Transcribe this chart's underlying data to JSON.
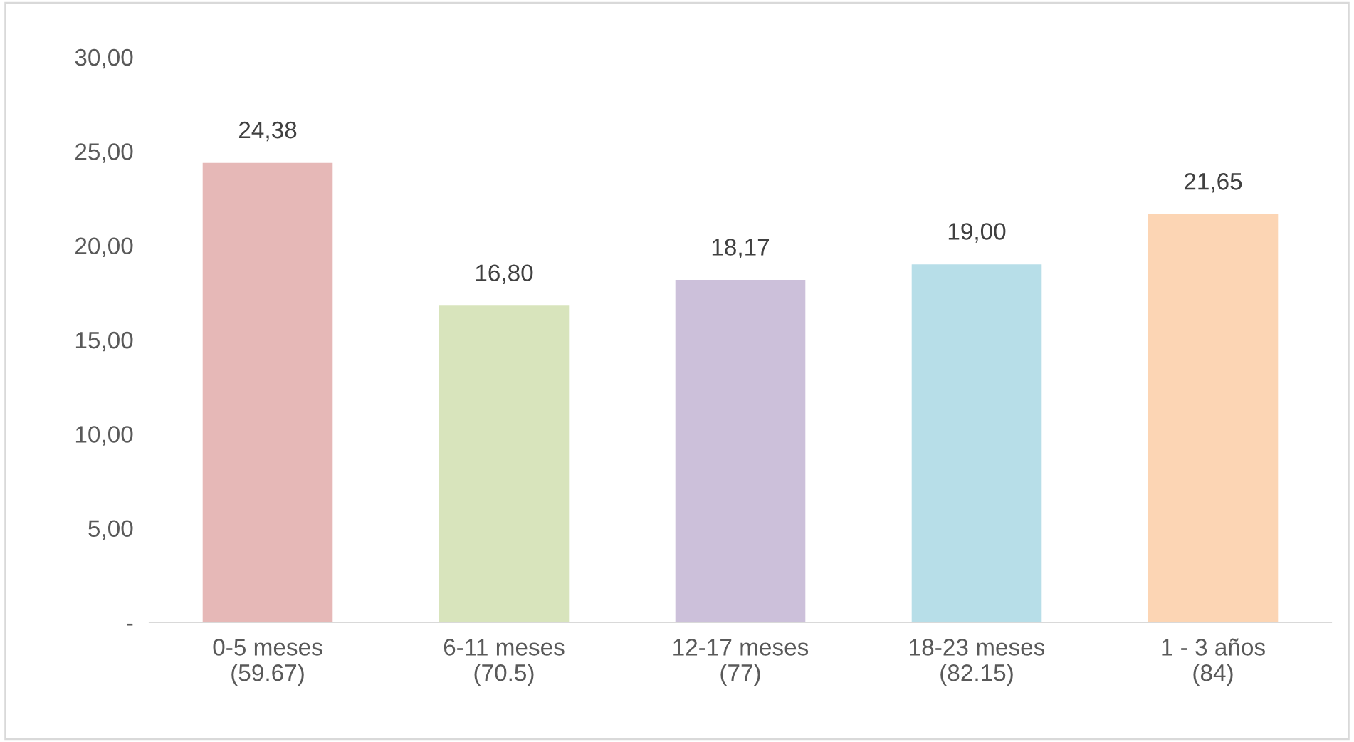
{
  "chart_data": {
    "type": "bar",
    "categories": [
      "0-5 meses\n(59.67)",
      "6-11 meses\n(70.5)",
      "12-17 meses\n(77)",
      "18-23 meses\n(82.15)",
      "1 - 3 años\n(84)"
    ],
    "values": [
      24.38,
      16.8,
      18.17,
      19.0,
      21.65
    ],
    "colors": [
      "#e6b8b7",
      "#d8e4bc",
      "#ccc0da",
      "#b7dee8",
      "#fcd5b4"
    ],
    "value_labels": [
      "24,38",
      "16,80",
      "18,17",
      "19,00",
      "21,65"
    ],
    "ylim": [
      0,
      30
    ],
    "yticks": [
      {
        "value": 0,
        "label": "-"
      },
      {
        "value": 5,
        "label": "5,00"
      },
      {
        "value": 10,
        "label": "10,00"
      },
      {
        "value": 15,
        "label": "15,00"
      },
      {
        "value": 20,
        "label": "20,00"
      },
      {
        "value": 25,
        "label": "25,00"
      },
      {
        "value": 30,
        "label": "30,00"
      }
    ],
    "grid": false
  }
}
